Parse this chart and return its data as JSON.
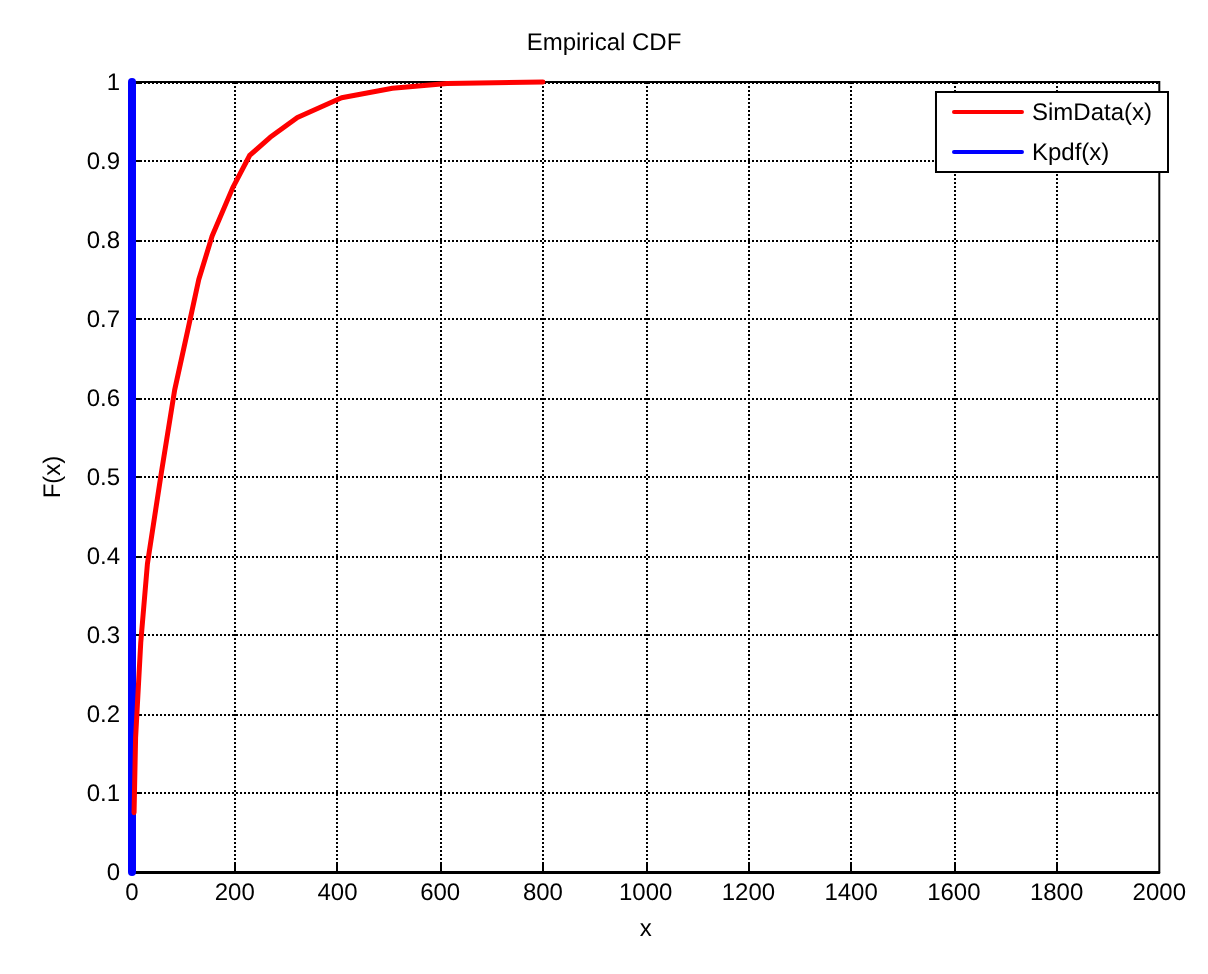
{
  "chart_data": {
    "type": "line",
    "title": "Empirical CDF",
    "xlabel": "x",
    "ylabel": "F(x)",
    "xlim": [
      0,
      2000
    ],
    "xticks": [
      0,
      200,
      400,
      600,
      800,
      1000,
      1200,
      1400,
      1600,
      1800,
      2000
    ],
    "ylim": [
      0,
      1
    ],
    "yticks": [
      0,
      0.1,
      0.2,
      0.3,
      0.4,
      0.5,
      0.6,
      0.7,
      0.8,
      0.9,
      1
    ],
    "grid": true,
    "legend": "top right",
    "marker": "none",
    "line_style": "solid",
    "series": [
      {
        "name": "SimData(x)",
        "color": "#ff0000",
        "x": [
          4,
          7,
          17,
          30,
          57,
          83,
          110,
          130,
          156,
          196,
          229,
          269,
          322,
          408,
          507,
          613,
          800
        ],
        "values": [
          0.075,
          0.17,
          0.29,
          0.39,
          0.505,
          0.61,
          0.69,
          0.75,
          0.805,
          0.866,
          0.907,
          0.93,
          0.955,
          0.98,
          0.992,
          0.998,
          1
        ]
      },
      {
        "name": "Kpdf(x)",
        "color": "#0000ff",
        "x": [
          0,
          0,
          0,
          0,
          0,
          0,
          0,
          0,
          0,
          0,
          0
        ],
        "values": [
          0,
          0.1,
          0.2,
          0.3,
          0.4,
          0.5,
          0.6,
          0.7,
          0.8,
          0.9,
          1
        ]
      }
    ]
  }
}
